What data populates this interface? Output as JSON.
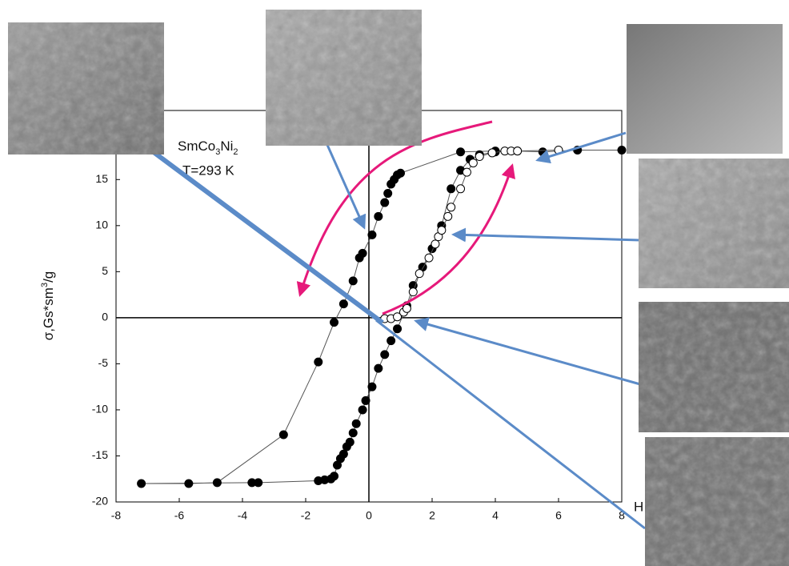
{
  "chart_data": {
    "type": "scatter",
    "annotations": [
      [
        "SmCo",
        "3",
        "Ni",
        "2"
      ],
      "T=293 K"
    ],
    "y_label": [
      "σ,Gs*sm",
      "3",
      "/g"
    ],
    "x_label": "H",
    "xlim": [
      -8,
      8
    ],
    "xticks": [
      -8,
      -6,
      -4,
      -2,
      0,
      2,
      4,
      6,
      8
    ],
    "ylim": [
      -20,
      22.5
    ],
    "yticks": [
      -20,
      -15,
      -10,
      -5,
      0,
      5,
      10,
      15
    ],
    "series": [
      {
        "color": "#000000",
        "marker": "filled",
        "x": [
          8,
          6.6,
          5.5,
          4.7,
          4,
          2.9,
          1,
          0.9,
          0.8,
          0.7,
          0.6,
          0.5,
          0.3,
          0.1,
          -0.2,
          -0.3,
          -0.5,
          -0.8,
          -1.1,
          -1.6,
          -2.7,
          -4.8,
          -5.7,
          -7.2,
          -3.7,
          -3.5,
          -1.6,
          -1.4,
          -1.2,
          -1.1,
          -1.0,
          -0.9,
          -0.8,
          -0.7,
          -0.6,
          -0.5,
          -0.4,
          -0.2,
          -0.1,
          0.1,
          0.3,
          0.5,
          0.7,
          0.9,
          1.2,
          1.4,
          1.7,
          2,
          2.3,
          2.6,
          2.9,
          3.2,
          3.5,
          4
        ],
        "values": [
          18.2,
          18.2,
          18,
          18.1,
          18.1,
          18,
          15.7,
          15.5,
          15,
          14.5,
          13.5,
          12.5,
          11,
          9,
          7,
          6.5,
          4,
          1.5,
          -0.5,
          -4.8,
          -12.7,
          -17.9,
          -18,
          -18,
          -17.9,
          -17.9,
          -17.7,
          -17.6,
          -17.5,
          -17.2,
          -16,
          -15.3,
          -14.8,
          -14,
          -13.5,
          -12.5,
          -11.5,
          -10,
          -9,
          -7.5,
          -5.5,
          -4,
          -2.5,
          -1.2,
          1.3,
          3.5,
          5.5,
          7.5,
          10,
          14,
          16,
          17.2,
          17.7,
          18
        ]
      },
      {
        "color": "#000000",
        "marker": "open",
        "x": [
          0.5,
          0.7,
          0.9,
          1.1,
          1.2,
          1.4,
          1.6,
          1.9,
          2.1,
          2.2,
          2.3,
          2.5,
          2.6,
          2.9,
          3.1,
          3.3,
          3.5,
          3.9,
          4.3,
          4.5,
          4.7,
          6
        ],
        "values": [
          -0.1,
          -0.1,
          0.1,
          0.6,
          1,
          2.8,
          4.8,
          6.5,
          8,
          8.8,
          9.5,
          11,
          12,
          14,
          15.8,
          16.8,
          17.5,
          17.9,
          18.1,
          18.1,
          18.1,
          18.2
        ]
      }
    ]
  }
}
